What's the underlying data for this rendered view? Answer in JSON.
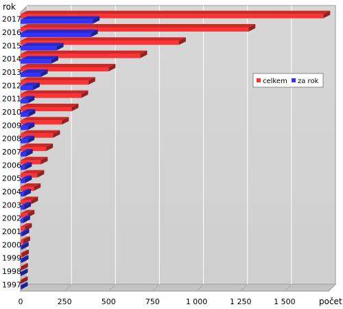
{
  "chart_data": {
    "type": "bar",
    "orientation": "horizontal",
    "style": "3d",
    "title": "",
    "ylabel": "rok",
    "xlabel": "počet",
    "categories": [
      "2017",
      "2016",
      "2015",
      "2014",
      "2013",
      "2012",
      "2011",
      "2010",
      "2009",
      "2008",
      "2007",
      "2006",
      "2005",
      "2004",
      "2003",
      "2002",
      "2001",
      "2000",
      "1999",
      "1998",
      "1997"
    ],
    "series": [
      {
        "name": "celkem",
        "color": "#ff3333",
        "values": [
          1720,
          1295,
          900,
          680,
          500,
          385,
          345,
          290,
          235,
          185,
          145,
          115,
          95,
          75,
          60,
          40,
          25,
          15,
          8,
          3,
          2
        ]
      },
      {
        "name": "za rok",
        "color": "#3333ff",
        "values": [
          410,
          400,
          205,
          175,
          115,
          70,
          40,
          45,
          40,
          40,
          30,
          25,
          25,
          20,
          20,
          15,
          10,
          7,
          6,
          2,
          2
        ]
      }
    ],
    "xlim": [
      0,
      1750
    ],
    "xticks": [
      0,
      250,
      500,
      750,
      1000,
      1250,
      1500
    ],
    "xtick_labels": [
      "0",
      "250",
      "500",
      "750",
      "1 000",
      "1 250",
      "1 500"
    ],
    "grid": true,
    "legend_position": "right"
  }
}
